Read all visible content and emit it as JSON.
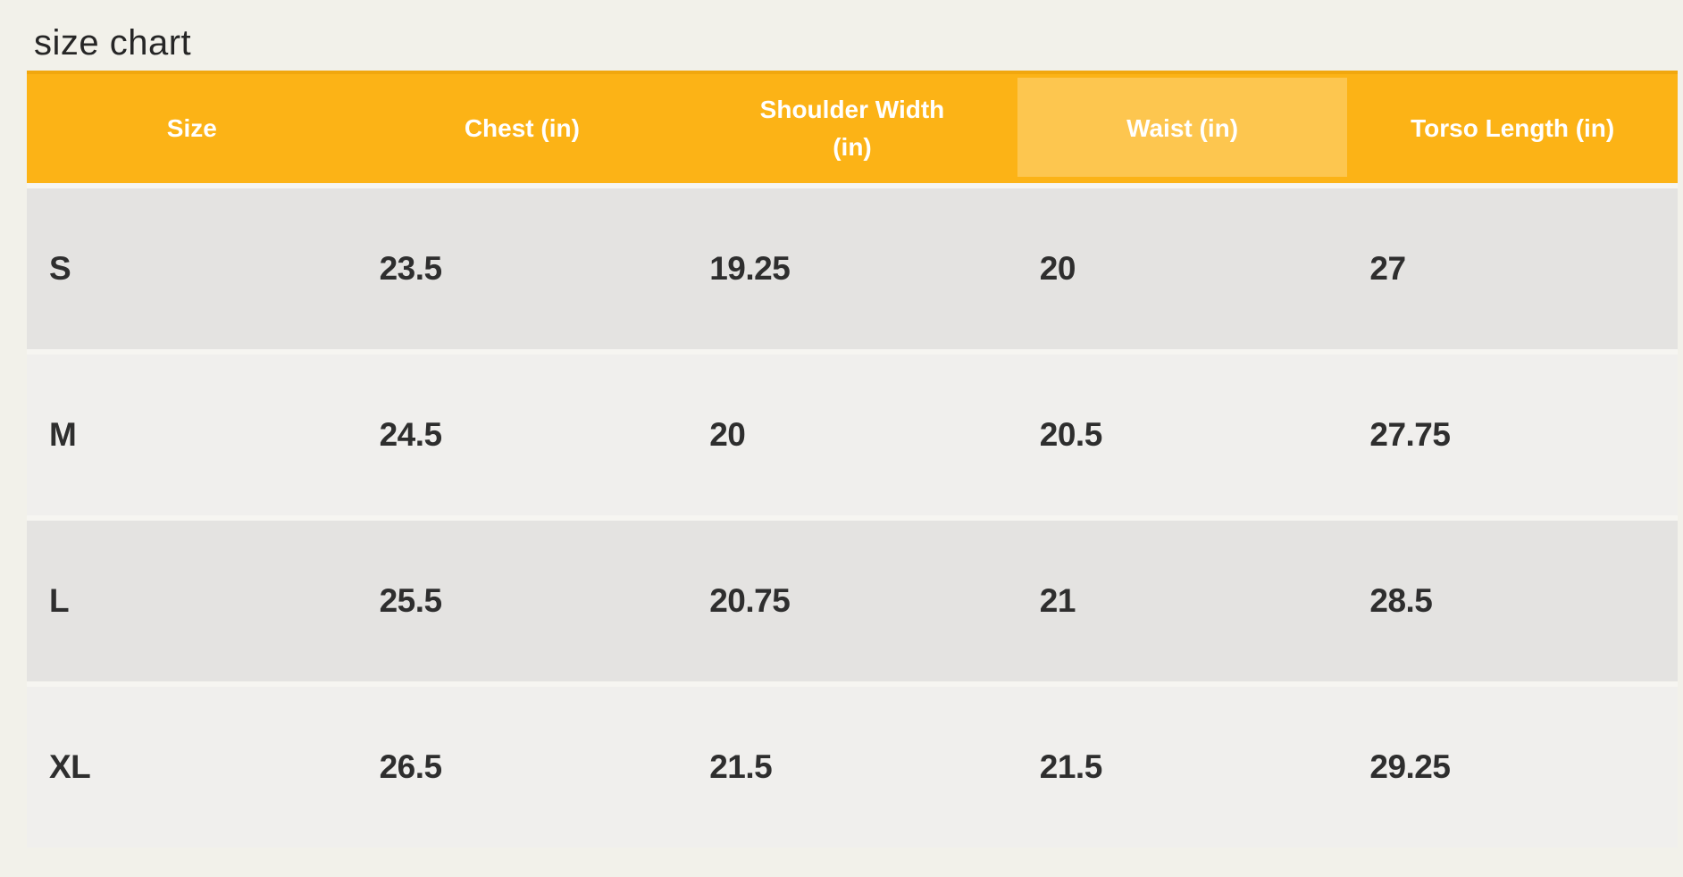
{
  "page": {
    "title": "size chart"
  },
  "colors": {
    "page_bg": "#f2f1ea",
    "header_bg": "#fcb316",
    "header_waist_bg": "#fdc64f",
    "header_text": "#ffffff",
    "row_dark": "#e4e3e1",
    "row_light": "#f0efed",
    "cell_text": "#2e2e2e"
  },
  "chart_data": {
    "type": "table",
    "title": "size chart",
    "columns": [
      "Size",
      "Chest (in)",
      "Shoulder Width (in)",
      "Waist (in)",
      "Torso Length (in)"
    ],
    "rows": [
      [
        "S",
        "23.5",
        "19.25",
        "20",
        "27"
      ],
      [
        "M",
        "24.5",
        "20",
        "20.5",
        "27.75"
      ],
      [
        "L",
        "25.5",
        "20.75",
        "21",
        "28.5"
      ],
      [
        "XL",
        "26.5",
        "21.5",
        "21.5",
        "29.25"
      ]
    ]
  }
}
